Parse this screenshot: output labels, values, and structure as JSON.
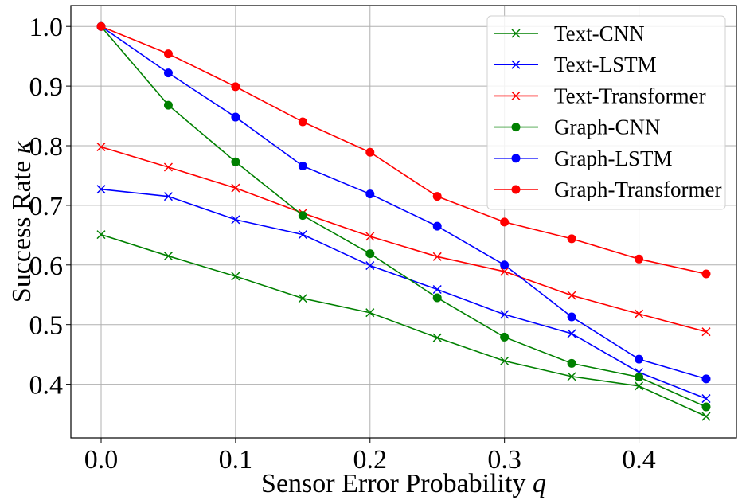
{
  "chart_data": {
    "type": "line",
    "xlabel": "Sensor Error Probability",
    "xlabel_var": "q",
    "ylabel": "Success Rate",
    "ylabel_var": "κ",
    "xlim": [
      -0.0225,
      0.4725
    ],
    "ylim": [
      0.31,
      1.035
    ],
    "grid": true,
    "legend_position": "top-right",
    "x": [
      0.0,
      0.05,
      0.1,
      0.15,
      0.2,
      0.25,
      0.3,
      0.35,
      0.4,
      0.45
    ],
    "x_ticks": [
      0.0,
      0.1,
      0.2,
      0.3,
      0.4
    ],
    "x_tick_labels": [
      "0.0",
      "0.1",
      "0.2",
      "0.3",
      "0.4"
    ],
    "y_ticks": [
      0.4,
      0.5,
      0.6,
      0.7,
      0.8,
      0.9,
      1.0
    ],
    "y_tick_labels": [
      "0.4",
      "0.5",
      "0.6",
      "0.7",
      "0.8",
      "0.9",
      "1.0"
    ],
    "series": [
      {
        "name": "Text-CNN",
        "color": "#008000",
        "marker": "x",
        "values": [
          0.651,
          0.615,
          0.581,
          0.544,
          0.52,
          0.478,
          0.439,
          0.413,
          0.397,
          0.346
        ]
      },
      {
        "name": "Text-LSTM",
        "color": "#0000ff",
        "marker": "x",
        "values": [
          0.727,
          0.715,
          0.676,
          0.651,
          0.599,
          0.559,
          0.517,
          0.485,
          0.42,
          0.376
        ]
      },
      {
        "name": "Text-Transformer",
        "color": "#ff0000",
        "marker": "x",
        "values": [
          0.798,
          0.764,
          0.729,
          0.687,
          0.648,
          0.614,
          0.589,
          0.549,
          0.518,
          0.488
        ]
      },
      {
        "name": "Graph-CNN",
        "color": "#008000",
        "marker": "o",
        "values": [
          1.0,
          0.868,
          0.773,
          0.683,
          0.619,
          0.545,
          0.479,
          0.435,
          0.412,
          0.362
        ]
      },
      {
        "name": "Graph-LSTM",
        "color": "#0000ff",
        "marker": "o",
        "values": [
          1.0,
          0.922,
          0.848,
          0.766,
          0.719,
          0.665,
          0.6,
          0.513,
          0.442,
          0.409
        ]
      },
      {
        "name": "Graph-Transformer",
        "color": "#ff0000",
        "marker": "o",
        "values": [
          1.0,
          0.954,
          0.899,
          0.84,
          0.789,
          0.715,
          0.672,
          0.644,
          0.61,
          0.585
        ]
      }
    ]
  }
}
